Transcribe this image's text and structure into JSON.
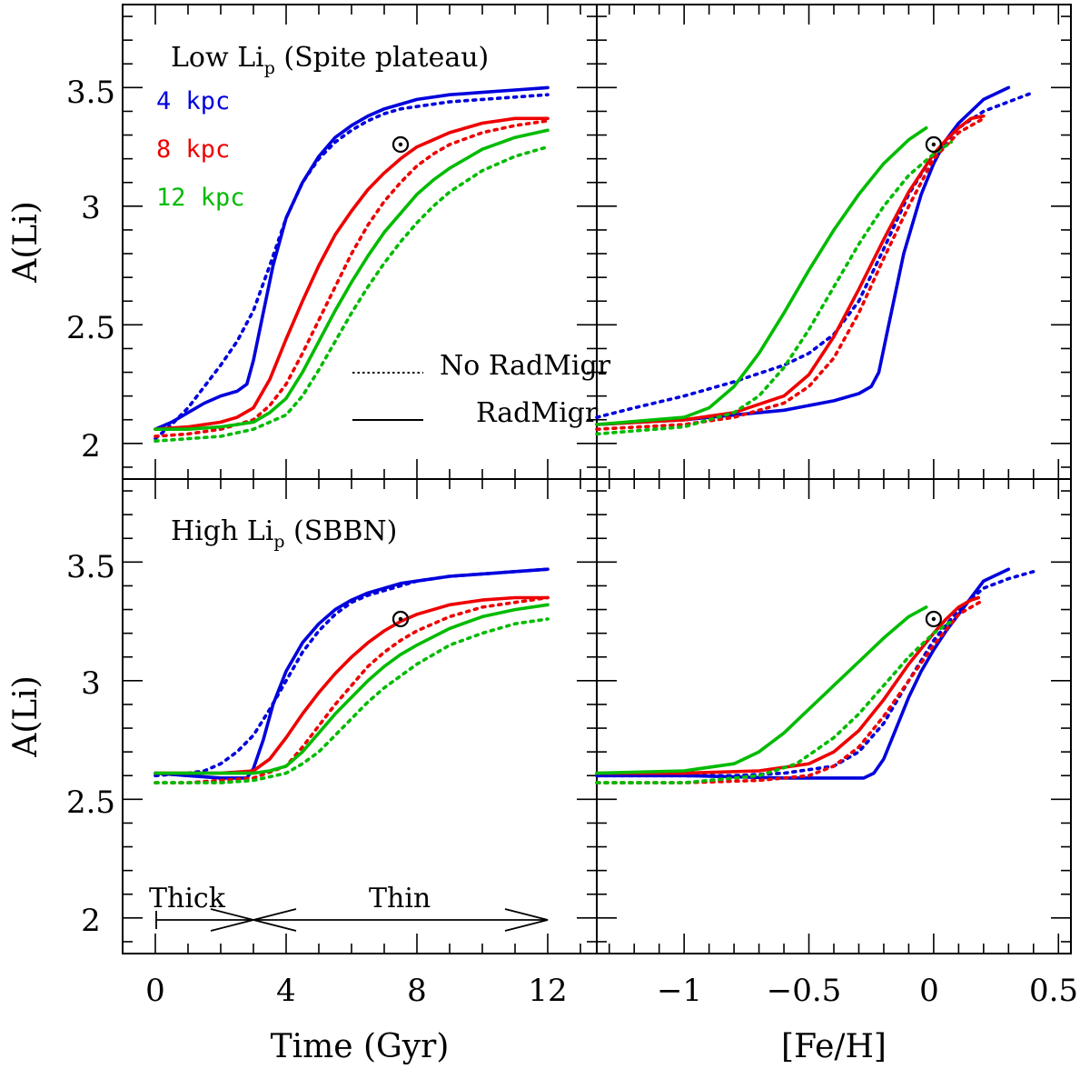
{
  "chart_data": [
    {
      "type": "line",
      "panel": "top-left",
      "title": "Low Li_p (Spite plateau)",
      "title_main": "Low Li",
      "title_sub": "p",
      "title_rest": " (Spite plateau)",
      "xlabel": "Time (Gyr)",
      "ylabel": "A(Li)",
      "xlim": [
        -1,
        13.5
      ],
      "ylim": [
        1.85,
        3.85
      ],
      "legend": {
        "radii": [
          {
            "label": "4 kpc",
            "color": "#0000dd"
          },
          {
            "label": "8 kpc",
            "color": "#ee0000"
          },
          {
            "label": "12 kpc",
            "color": "#00bb00"
          }
        ],
        "styles": [
          {
            "label": "No RadMigr",
            "dash": true
          },
          {
            "label": "RadMigr",
            "dash": false
          }
        ]
      },
      "sun": {
        "x": 7.5,
        "y": 3.26
      },
      "series": [
        {
          "name": "4 kpc RadMigr",
          "color": "#0000dd",
          "dashed": false,
          "x": [
            0,
            0.5,
            1,
            1.5,
            2,
            2.5,
            2.8,
            3,
            3.3,
            3.6,
            4,
            4.5,
            5,
            5.5,
            6,
            6.5,
            7,
            7.5,
            8,
            9,
            10,
            11,
            12
          ],
          "y": [
            2.06,
            2.09,
            2.13,
            2.17,
            2.2,
            2.22,
            2.25,
            2.35,
            2.55,
            2.75,
            2.95,
            3.1,
            3.21,
            3.29,
            3.34,
            3.38,
            3.41,
            3.43,
            3.45,
            3.47,
            3.48,
            3.49,
            3.5
          ]
        },
        {
          "name": "4 kpc No RadMigr",
          "color": "#0000dd",
          "dashed": true,
          "x": [
            0,
            0.5,
            1,
            1.5,
            2,
            2.5,
            3,
            3.5,
            4,
            4.5,
            5,
            5.5,
            6,
            6.5,
            7,
            7.5,
            8,
            9,
            10,
            11,
            12
          ],
          "y": [
            2.02,
            2.08,
            2.15,
            2.24,
            2.33,
            2.43,
            2.56,
            2.75,
            2.95,
            3.1,
            3.2,
            3.27,
            3.32,
            3.36,
            3.39,
            3.41,
            3.42,
            3.44,
            3.45,
            3.46,
            3.47
          ]
        },
        {
          "name": "8 kpc RadMigr",
          "color": "#ee0000",
          "dashed": false,
          "x": [
            0,
            1,
            2,
            2.5,
            3,
            3.5,
            4,
            4.5,
            5,
            5.5,
            6,
            6.5,
            7,
            7.5,
            8,
            8.5,
            9,
            10,
            11,
            12
          ],
          "y": [
            2.06,
            2.07,
            2.09,
            2.11,
            2.15,
            2.27,
            2.44,
            2.6,
            2.75,
            2.88,
            2.98,
            3.07,
            3.14,
            3.2,
            3.25,
            3.28,
            3.31,
            3.35,
            3.37,
            3.37
          ]
        },
        {
          "name": "8 kpc No RadMigr",
          "color": "#ee0000",
          "dashed": true,
          "x": [
            0,
            1,
            2,
            3,
            3.5,
            4,
            4.5,
            5,
            5.5,
            6,
            6.5,
            7,
            7.5,
            8,
            8.5,
            9,
            10,
            11,
            12
          ],
          "y": [
            2.03,
            2.04,
            2.06,
            2.1,
            2.16,
            2.25,
            2.38,
            2.52,
            2.66,
            2.8,
            2.92,
            3.02,
            3.1,
            3.17,
            3.22,
            3.26,
            3.31,
            3.34,
            3.36
          ]
        },
        {
          "name": "12 kpc RadMigr",
          "color": "#00bb00",
          "dashed": false,
          "x": [
            0,
            1,
            2,
            3,
            3.5,
            4,
            4.5,
            5,
            5.5,
            6,
            6.5,
            7,
            7.5,
            8,
            8.5,
            9,
            10,
            11,
            12
          ],
          "y": [
            2.06,
            2.06,
            2.07,
            2.09,
            2.13,
            2.19,
            2.3,
            2.43,
            2.56,
            2.68,
            2.79,
            2.89,
            2.97,
            3.05,
            3.11,
            3.16,
            3.24,
            3.29,
            3.32
          ]
        },
        {
          "name": "12 kpc No RadMigr",
          "color": "#00bb00",
          "dashed": true,
          "x": [
            0,
            1,
            2,
            3,
            4,
            4.5,
            5,
            5.5,
            6,
            6.5,
            7,
            7.5,
            8,
            8.5,
            9,
            10,
            11,
            12
          ],
          "y": [
            2.01,
            2.02,
            2.03,
            2.06,
            2.12,
            2.2,
            2.31,
            2.43,
            2.55,
            2.66,
            2.76,
            2.85,
            2.93,
            3.0,
            3.06,
            3.15,
            3.21,
            3.25
          ]
        }
      ]
    },
    {
      "type": "line",
      "panel": "top-right",
      "xlabel": "[Fe/H]",
      "ylabel": "",
      "xlim": [
        -1.35,
        0.55
      ],
      "ylim": [
        1.85,
        3.85
      ],
      "sun": {
        "x": 0,
        "y": 3.26
      },
      "series": [
        {
          "name": "4 kpc RadMigr",
          "color": "#0000dd",
          "dashed": false,
          "x": [
            -1.35,
            -1.0,
            -0.6,
            -0.4,
            -0.3,
            -0.25,
            -0.22,
            -0.18,
            -0.12,
            -0.05,
            0,
            0.05,
            0.1,
            0.15,
            0.2,
            0.3
          ],
          "y": [
            2.08,
            2.1,
            2.14,
            2.18,
            2.21,
            2.24,
            2.3,
            2.5,
            2.8,
            3.05,
            3.18,
            3.28,
            3.35,
            3.4,
            3.45,
            3.5
          ]
        },
        {
          "name": "4 kpc No RadMigr",
          "color": "#0000dd",
          "dashed": true,
          "x": [
            -1.35,
            -1.2,
            -1.0,
            -0.8,
            -0.6,
            -0.5,
            -0.4,
            -0.3,
            -0.2,
            -0.1,
            0,
            0.1,
            0.2,
            0.3,
            0.4
          ],
          "y": [
            2.11,
            2.15,
            2.2,
            2.26,
            2.33,
            2.38,
            2.46,
            2.6,
            2.82,
            3.05,
            3.22,
            3.33,
            3.4,
            3.44,
            3.48
          ]
        },
        {
          "name": "8 kpc RadMigr",
          "color": "#ee0000",
          "dashed": false,
          "x": [
            -1.35,
            -1.0,
            -0.8,
            -0.6,
            -0.5,
            -0.4,
            -0.3,
            -0.2,
            -0.1,
            0,
            0.05,
            0.1,
            0.15,
            0.2
          ],
          "y": [
            2.08,
            2.1,
            2.13,
            2.2,
            2.29,
            2.45,
            2.65,
            2.86,
            3.06,
            3.22,
            3.28,
            3.33,
            3.37,
            3.38
          ]
        },
        {
          "name": "8 kpc No RadMigr",
          "color": "#ee0000",
          "dashed": true,
          "x": [
            -1.35,
            -1.0,
            -0.8,
            -0.6,
            -0.5,
            -0.4,
            -0.3,
            -0.2,
            -0.1,
            0,
            0.1,
            0.2
          ],
          "y": [
            2.06,
            2.08,
            2.11,
            2.17,
            2.24,
            2.36,
            2.55,
            2.78,
            3.0,
            3.2,
            3.31,
            3.37
          ]
        },
        {
          "name": "12 kpc RadMigr",
          "color": "#00bb00",
          "dashed": false,
          "x": [
            -1.35,
            -1.0,
            -0.9,
            -0.8,
            -0.7,
            -0.6,
            -0.5,
            -0.4,
            -0.3,
            -0.2,
            -0.1,
            -0.03
          ],
          "y": [
            2.08,
            2.11,
            2.15,
            2.24,
            2.38,
            2.55,
            2.73,
            2.9,
            3.05,
            3.18,
            3.28,
            3.33
          ]
        },
        {
          "name": "12 kpc No RadMigr",
          "color": "#00bb00",
          "dashed": true,
          "x": [
            -1.35,
            -1.0,
            -0.8,
            -0.7,
            -0.6,
            -0.5,
            -0.4,
            -0.3,
            -0.2,
            -0.1,
            0,
            0.07
          ],
          "y": [
            2.04,
            2.07,
            2.13,
            2.2,
            2.32,
            2.48,
            2.66,
            2.84,
            3.0,
            3.13,
            3.22,
            3.27
          ]
        }
      ]
    },
    {
      "type": "line",
      "panel": "bottom-left",
      "title": "High Li_p (SBBN)",
      "title_main": "High Li",
      "title_sub": "p",
      "title_rest": " (SBBN)",
      "xlabel": "Time (Gyr)",
      "ylabel": "A(Li)",
      "xlim": [
        -1,
        13.5
      ],
      "ylim": [
        1.85,
        3.85
      ],
      "xticks": [
        "0",
        "4",
        "8",
        "12"
      ],
      "sun": {
        "x": 7.5,
        "y": 3.26
      },
      "annotations": {
        "thick": "Thick",
        "thin": "Thin"
      },
      "series": [
        {
          "name": "4 kpc RadMigr",
          "color": "#0000dd",
          "dashed": false,
          "x": [
            0,
            1,
            2,
            2.8,
            3,
            3.3,
            3.6,
            4,
            4.5,
            5,
            5.5,
            6,
            6.5,
            7,
            7.5,
            8,
            9,
            10,
            11,
            12
          ],
          "y": [
            2.61,
            2.6,
            2.59,
            2.59,
            2.63,
            2.75,
            2.9,
            3.04,
            3.16,
            3.24,
            3.3,
            3.34,
            3.37,
            3.39,
            3.41,
            3.42,
            3.44,
            3.45,
            3.46,
            3.47
          ]
        },
        {
          "name": "4 kpc No RadMigr",
          "color": "#0000dd",
          "dashed": true,
          "x": [
            0,
            1,
            1.5,
            2,
            2.5,
            3,
            3.5,
            4,
            4.5,
            5,
            5.5,
            6,
            6.5,
            7,
            7.5,
            8,
            9,
            10,
            11,
            12
          ],
          "y": [
            2.6,
            2.61,
            2.62,
            2.65,
            2.7,
            2.77,
            2.88,
            3.0,
            3.12,
            3.21,
            3.28,
            3.33,
            3.36,
            3.38,
            3.4,
            3.42,
            3.44,
            3.45,
            3.46,
            3.47
          ]
        },
        {
          "name": "8 kpc RadMigr",
          "color": "#ee0000",
          "dashed": false,
          "x": [
            0,
            1,
            2,
            3,
            3.5,
            4,
            4.5,
            5,
            5.5,
            6,
            6.5,
            7,
            7.5,
            8,
            9,
            10,
            11,
            12
          ],
          "y": [
            2.61,
            2.61,
            2.61,
            2.62,
            2.67,
            2.76,
            2.86,
            2.95,
            3.03,
            3.1,
            3.16,
            3.21,
            3.25,
            3.28,
            3.32,
            3.34,
            3.35,
            3.35
          ]
        },
        {
          "name": "8 kpc No RadMigr",
          "color": "#ee0000",
          "dashed": true,
          "x": [
            0,
            1,
            2,
            3,
            4,
            4.5,
            5,
            5.5,
            6,
            6.5,
            7,
            7.5,
            8,
            9,
            10,
            11,
            12
          ],
          "y": [
            2.57,
            2.57,
            2.58,
            2.59,
            2.64,
            2.72,
            2.81,
            2.9,
            2.98,
            3.06,
            3.12,
            3.17,
            3.21,
            3.27,
            3.31,
            3.33,
            3.35
          ]
        },
        {
          "name": "12 kpc RadMigr",
          "color": "#00bb00",
          "dashed": false,
          "x": [
            0,
            1,
            2,
            3,
            3.5,
            4,
            4.5,
            5,
            5.5,
            6,
            6.5,
            7,
            7.5,
            8,
            9,
            10,
            11,
            12
          ],
          "y": [
            2.61,
            2.61,
            2.61,
            2.61,
            2.62,
            2.64,
            2.7,
            2.78,
            2.86,
            2.93,
            3.0,
            3.06,
            3.11,
            3.15,
            3.22,
            3.27,
            3.3,
            3.32
          ]
        },
        {
          "name": "12 kpc No RadMigr",
          "color": "#00bb00",
          "dashed": true,
          "x": [
            0,
            1,
            2,
            3,
            4,
            4.5,
            5,
            5.5,
            6,
            6.5,
            7,
            7.5,
            8,
            9,
            10,
            11,
            12
          ],
          "y": [
            2.57,
            2.57,
            2.57,
            2.58,
            2.61,
            2.65,
            2.7,
            2.77,
            2.84,
            2.91,
            2.97,
            3.02,
            3.07,
            3.15,
            3.2,
            3.24,
            3.26
          ]
        }
      ]
    },
    {
      "type": "line",
      "panel": "bottom-right",
      "xlabel": "[Fe/H]",
      "ylabel": "",
      "xlim": [
        -1.35,
        0.55
      ],
      "ylim": [
        1.85,
        3.85
      ],
      "xticks": [
        "−1",
        "−0.5",
        "0",
        "0.5"
      ],
      "sun": {
        "x": 0,
        "y": 3.26
      },
      "series": [
        {
          "name": "4 kpc RadMigr",
          "color": "#0000dd",
          "dashed": false,
          "x": [
            -1.35,
            -1.0,
            -0.6,
            -0.35,
            -0.28,
            -0.24,
            -0.2,
            -0.15,
            -0.1,
            -0.05,
            0,
            0.05,
            0.1,
            0.15,
            0.2,
            0.3
          ],
          "y": [
            2.6,
            2.6,
            2.59,
            2.59,
            2.59,
            2.61,
            2.67,
            2.8,
            2.93,
            3.04,
            3.13,
            3.21,
            3.28,
            3.35,
            3.42,
            3.47
          ]
        },
        {
          "name": "4 kpc No RadMigr",
          "color": "#0000dd",
          "dashed": true,
          "x": [
            -1.35,
            -1.0,
            -0.8,
            -0.6,
            -0.4,
            -0.3,
            -0.2,
            -0.1,
            0,
            0.1,
            0.2,
            0.3,
            0.4
          ],
          "y": [
            2.6,
            2.6,
            2.6,
            2.61,
            2.64,
            2.7,
            2.82,
            3.0,
            3.17,
            3.3,
            3.39,
            3.43,
            3.46
          ]
        },
        {
          "name": "8 kpc RadMigr",
          "color": "#ee0000",
          "dashed": false,
          "x": [
            -1.35,
            -1.0,
            -0.7,
            -0.5,
            -0.4,
            -0.3,
            -0.2,
            -0.1,
            0,
            0.05,
            0.1,
            0.15,
            0.18
          ],
          "y": [
            2.61,
            2.61,
            2.62,
            2.65,
            2.7,
            2.79,
            2.92,
            3.07,
            3.2,
            3.26,
            3.31,
            3.34,
            3.35
          ]
        },
        {
          "name": "8 kpc No RadMigr",
          "color": "#ee0000",
          "dashed": true,
          "x": [
            -1.35,
            -1.0,
            -0.7,
            -0.5,
            -0.4,
            -0.3,
            -0.2,
            -0.1,
            0,
            0.1,
            0.2
          ],
          "y": [
            2.57,
            2.57,
            2.58,
            2.6,
            2.64,
            2.72,
            2.85,
            3.0,
            3.15,
            3.28,
            3.34
          ]
        },
        {
          "name": "12 kpc RadMigr",
          "color": "#00bb00",
          "dashed": false,
          "x": [
            -1.35,
            -1.0,
            -0.8,
            -0.7,
            -0.6,
            -0.5,
            -0.4,
            -0.3,
            -0.2,
            -0.1,
            -0.03
          ],
          "y": [
            2.61,
            2.62,
            2.65,
            2.7,
            2.78,
            2.88,
            2.98,
            3.08,
            3.18,
            3.27,
            3.31
          ]
        },
        {
          "name": "12 kpc No RadMigr",
          "color": "#00bb00",
          "dashed": true,
          "x": [
            -1.35,
            -1.0,
            -0.7,
            -0.55,
            -0.4,
            -0.3,
            -0.2,
            -0.1,
            0,
            0.07
          ],
          "y": [
            2.57,
            2.57,
            2.6,
            2.65,
            2.76,
            2.86,
            2.98,
            3.1,
            3.2,
            3.25
          ]
        }
      ]
    }
  ],
  "yticks": [
    "2",
    "2.5",
    "3",
    "3.5"
  ]
}
